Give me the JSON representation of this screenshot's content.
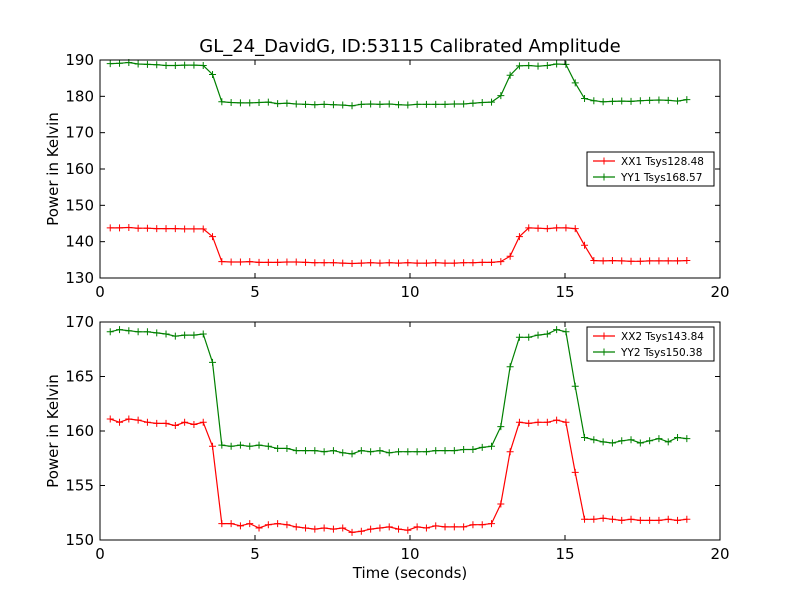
{
  "figure": {
    "title": "GL_24_DavidG, ID:53115 Calibrated Amplitude",
    "xlabel": "Time (seconds)"
  },
  "colors": {
    "xx": "#ff0000",
    "yy": "#008000"
  },
  "chart_data": [
    {
      "type": "line",
      "ylabel": "Power in Kelvin",
      "xlim": [
        0,
        20
      ],
      "ylim": [
        130,
        190
      ],
      "xticks": [
        0,
        5,
        10,
        15,
        20
      ],
      "yticks": [
        130,
        140,
        150,
        160,
        170,
        180,
        190
      ],
      "legend_position": "center-right",
      "x": [
        0.33,
        0.63,
        0.93,
        1.23,
        1.53,
        1.83,
        2.13,
        2.43,
        2.73,
        3.03,
        3.33,
        3.63,
        3.93,
        4.23,
        4.53,
        4.83,
        5.13,
        5.43,
        5.73,
        6.03,
        6.33,
        6.63,
        6.93,
        7.23,
        7.53,
        7.83,
        8.13,
        8.43,
        8.73,
        9.03,
        9.33,
        9.63,
        9.93,
        10.23,
        10.53,
        10.83,
        11.13,
        11.43,
        11.73,
        12.03,
        12.33,
        12.63,
        12.93,
        13.23,
        13.53,
        13.83,
        14.13,
        14.43,
        14.73,
        15.03,
        15.33,
        15.63,
        15.93,
        16.23,
        16.53,
        16.83,
        17.13,
        17.43,
        17.73,
        18.03,
        18.33,
        18.63,
        18.93
      ],
      "series": [
        {
          "name": "XX1 Tsys128.48",
          "color": "#ff0000",
          "values": [
            143.8,
            143.8,
            143.9,
            143.7,
            143.7,
            143.6,
            143.6,
            143.6,
            143.5,
            143.5,
            143.5,
            141.4,
            134.5,
            134.4,
            134.4,
            134.5,
            134.3,
            134.3,
            134.3,
            134.4,
            134.4,
            134.3,
            134.2,
            134.2,
            134.2,
            134.1,
            134.0,
            134.1,
            134.2,
            134.1,
            134.2,
            134.1,
            134.2,
            134.1,
            134.1,
            134.2,
            134.1,
            134.1,
            134.2,
            134.2,
            134.3,
            134.3,
            134.5,
            136.0,
            141.4,
            143.8,
            143.7,
            143.6,
            143.8,
            143.8,
            143.6,
            139.0,
            134.8,
            134.7,
            134.8,
            134.7,
            134.6,
            134.6,
            134.7,
            134.7,
            134.7,
            134.7,
            134.8
          ]
        },
        {
          "name": "YY1 Tsys168.57",
          "color": "#008000",
          "values": [
            189.0,
            189.1,
            189.3,
            188.9,
            188.8,
            188.7,
            188.5,
            188.5,
            188.6,
            188.6,
            188.5,
            186.0,
            178.5,
            178.3,
            178.2,
            178.2,
            178.3,
            178.4,
            178.0,
            178.1,
            177.9,
            177.8,
            177.7,
            177.8,
            177.7,
            177.6,
            177.4,
            177.8,
            177.9,
            177.8,
            177.9,
            177.7,
            177.6,
            177.8,
            177.8,
            177.8,
            177.8,
            177.9,
            177.9,
            178.1,
            178.3,
            178.4,
            180.2,
            185.8,
            188.4,
            188.5,
            188.3,
            188.5,
            188.9,
            188.8,
            183.7,
            179.4,
            178.8,
            178.5,
            178.6,
            178.7,
            178.6,
            178.8,
            178.9,
            179.0,
            178.9,
            178.7,
            179.1
          ]
        }
      ]
    },
    {
      "type": "line",
      "ylabel": "Power in Kelvin",
      "xlim": [
        0,
        20
      ],
      "ylim": [
        150,
        170
      ],
      "xticks": [
        0,
        5,
        10,
        15,
        20
      ],
      "yticks": [
        150,
        155,
        160,
        165,
        170
      ],
      "legend_position": "top-right",
      "x": [
        0.33,
        0.63,
        0.93,
        1.23,
        1.53,
        1.83,
        2.13,
        2.43,
        2.73,
        3.03,
        3.33,
        3.63,
        3.93,
        4.23,
        4.53,
        4.83,
        5.13,
        5.43,
        5.73,
        6.03,
        6.33,
        6.63,
        6.93,
        7.23,
        7.53,
        7.83,
        8.13,
        8.43,
        8.73,
        9.03,
        9.33,
        9.63,
        9.93,
        10.23,
        10.53,
        10.83,
        11.13,
        11.43,
        11.73,
        12.03,
        12.33,
        12.63,
        12.93,
        13.23,
        13.53,
        13.83,
        14.13,
        14.43,
        14.73,
        15.03,
        15.33,
        15.63,
        15.93,
        16.23,
        16.53,
        16.83,
        17.13,
        17.43,
        17.73,
        18.03,
        18.33,
        18.63,
        18.93
      ],
      "series": [
        {
          "name": "XX2 Tsys143.84",
          "color": "#ff0000",
          "values": [
            161.1,
            160.8,
            161.1,
            161.0,
            160.8,
            160.7,
            160.7,
            160.5,
            160.8,
            160.6,
            160.8,
            158.6,
            151.5,
            151.5,
            151.3,
            151.5,
            151.1,
            151.4,
            151.5,
            151.4,
            151.2,
            151.1,
            151.0,
            151.1,
            151.0,
            151.1,
            150.7,
            150.8,
            151.0,
            151.1,
            151.2,
            151.0,
            150.9,
            151.2,
            151.1,
            151.3,
            151.2,
            151.2,
            151.2,
            151.4,
            151.4,
            151.5,
            153.3,
            158.1,
            160.8,
            160.7,
            160.8,
            160.8,
            161.0,
            160.8,
            156.2,
            151.9,
            151.9,
            152.0,
            151.9,
            151.8,
            151.9,
            151.8,
            151.8,
            151.8,
            151.9,
            151.8,
            151.9
          ]
        },
        {
          "name": "YY2 Tsys150.38",
          "color": "#008000",
          "values": [
            169.1,
            169.3,
            169.2,
            169.1,
            169.1,
            169.0,
            168.9,
            168.7,
            168.8,
            168.8,
            168.9,
            166.3,
            158.7,
            158.6,
            158.7,
            158.6,
            158.7,
            158.6,
            158.4,
            158.4,
            158.2,
            158.2,
            158.2,
            158.1,
            158.2,
            158.0,
            157.9,
            158.2,
            158.1,
            158.2,
            158.0,
            158.1,
            158.1,
            158.1,
            158.1,
            158.2,
            158.2,
            158.2,
            158.3,
            158.3,
            158.5,
            158.6,
            160.4,
            165.9,
            168.6,
            168.6,
            168.8,
            168.9,
            169.3,
            169.1,
            164.1,
            159.4,
            159.2,
            159.0,
            158.9,
            159.1,
            159.2,
            158.9,
            159.1,
            159.3,
            159.0,
            159.4,
            159.3
          ]
        }
      ]
    }
  ]
}
